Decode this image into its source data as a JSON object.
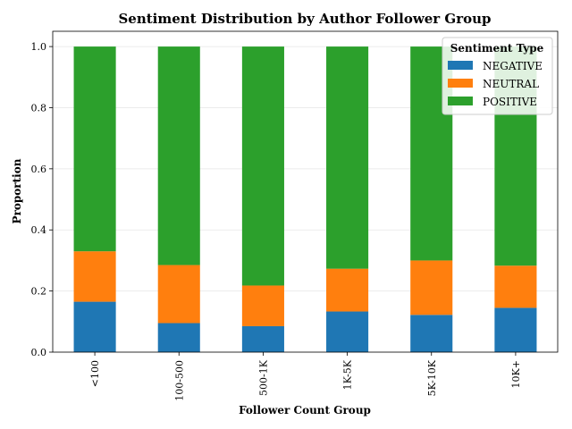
{
  "chart_data": {
    "type": "bar",
    "stacked": true,
    "title": "Sentiment Distribution by Author Follower Group",
    "xlabel": "Follower Count Group",
    "ylabel": "Proportion",
    "categories": [
      "<100",
      "100-500",
      "500-1K",
      "1K-5K",
      "5K-10K",
      "10K+"
    ],
    "ylim": [
      0,
      1.05
    ],
    "yticks": [
      "0.0",
      "0.2",
      "0.4",
      "0.6",
      "0.8",
      "1.0"
    ],
    "grid": "horizontal",
    "legend": {
      "title": "Sentiment Type",
      "position": "top-right"
    },
    "series": [
      {
        "name": "NEGATIVE",
        "color": "#1f77b4",
        "values": [
          0.165,
          0.095,
          0.085,
          0.133,
          0.122,
          0.145
        ]
      },
      {
        "name": "NEUTRAL",
        "color": "#ff7f0e",
        "values": [
          0.165,
          0.19,
          0.133,
          0.14,
          0.178,
          0.138
        ]
      },
      {
        "name": "POSITIVE",
        "color": "#2ca02c",
        "values": [
          0.67,
          0.715,
          0.782,
          0.727,
          0.7,
          0.717
        ]
      }
    ]
  }
}
